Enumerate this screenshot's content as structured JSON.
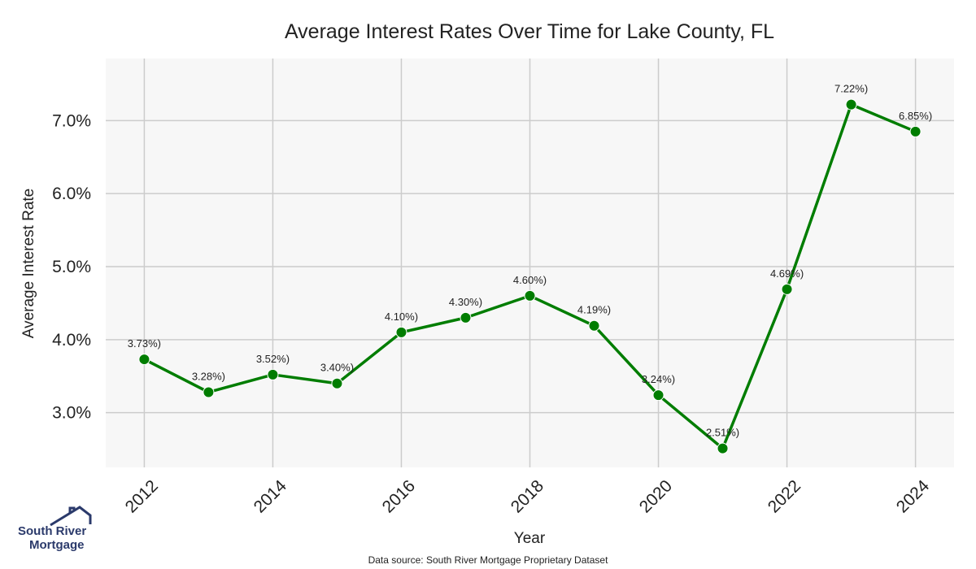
{
  "chart_data": {
    "type": "line",
    "title": "Average Interest Rates Over Time for Lake County, FL",
    "xlabel": "Year",
    "ylabel": "Average Interest Rate",
    "x": [
      2012,
      2013,
      2014,
      2015,
      2016,
      2017,
      2018,
      2019,
      2020,
      2021,
      2022,
      2023,
      2024
    ],
    "values": [
      3.73,
      3.28,
      3.52,
      3.4,
      4.1,
      4.3,
      4.6,
      4.19,
      3.24,
      2.51,
      4.69,
      7.22,
      6.85
    ],
    "data_labels": [
      "3.73%)",
      "3.28%)",
      "3.52%)",
      "3.40%)",
      "4.10%)",
      "4.30%)",
      "4.60%)",
      "4.19%)",
      "3.24%)",
      "2.51%)",
      "4.69%)",
      "7.22%)",
      "6.85%)"
    ],
    "xticks": [
      "2012",
      "2014",
      "2016",
      "2018",
      "2020",
      "2022",
      "2024"
    ],
    "yticks": [
      3.0,
      4.0,
      5.0,
      6.0,
      7.0
    ],
    "ytick_labels": [
      "3.0%",
      "4.0%",
      "5.0%",
      "6.0%",
      "7.0%"
    ],
    "xlim": [
      2011.4,
      2024.6
    ],
    "ylim": [
      2.25,
      7.85
    ],
    "grid": true,
    "colors": {
      "line": "#007d00",
      "plot_bg": "#f7f7f7",
      "grid": "#cccccc"
    }
  },
  "footer": {
    "source": "Data source: South River Mortgage Proprietary Dataset",
    "logo_line1": "South River",
    "logo_line2": "Mortgage",
    "logo_icon": "house-roof-icon"
  }
}
